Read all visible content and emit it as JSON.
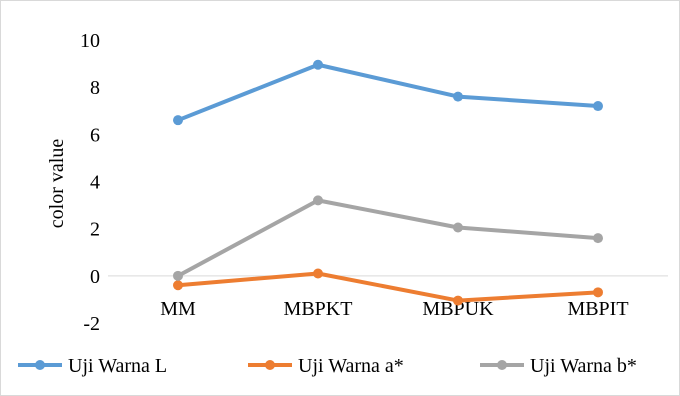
{
  "chart_data": {
    "type": "line",
    "categories": [
      "MM",
      "MBPKT",
      "MBPUK",
      "MBPIT"
    ],
    "series": [
      {
        "name": "Uji Warna L",
        "color": "#5b9bd5",
        "values": [
          6.6,
          8.95,
          7.6,
          7.2
        ]
      },
      {
        "name": "Uji Warna a*",
        "color": "#ed7d31",
        "values": [
          -0.4,
          0.1,
          -1.05,
          -0.7
        ]
      },
      {
        "name": "Uji Warna b*",
        "color": "#a5a5a5",
        "values": [
          0.0,
          3.2,
          2.05,
          1.6
        ]
      }
    ],
    "xlabel": "",
    "ylabel": "color value",
    "ylim": [
      -2,
      10
    ],
    "yticks": [
      "-2",
      "0",
      "2",
      "4",
      "6",
      "8",
      "10"
    ],
    "grid": false,
    "legend": "bottom"
  }
}
